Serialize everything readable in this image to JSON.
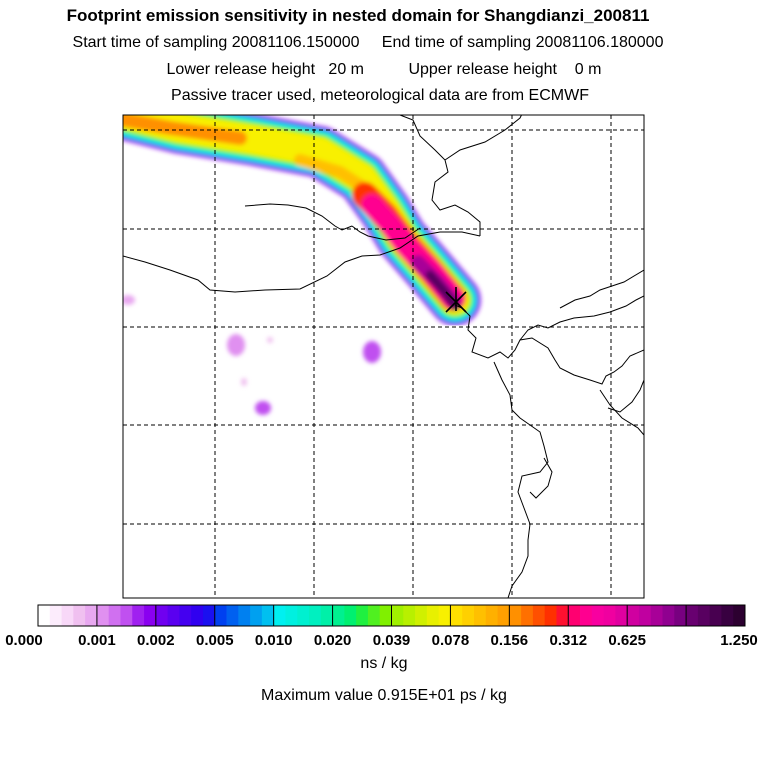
{
  "header": {
    "title": "Footprint emission sensitivity in nested domain for Shangdianzi_200811",
    "start_label": "Start time of sampling",
    "start_value": "20081106.150000",
    "end_label": "End time of sampling",
    "end_value": "20081106.180000",
    "lower_label": "Lower release height",
    "lower_value": "20 m",
    "upper_label": "Upper release height",
    "upper_value": "0 m",
    "tracer_note": "Passive tracer used, meteorological data are from ECMWF"
  },
  "map": {
    "release_site_marker": "x-marker-icon",
    "gridlines": "dashed"
  },
  "colorbar": {
    "tick_labels": [
      "0.000",
      "0.001",
      "0.002",
      "0.005",
      "0.010",
      "0.020",
      "0.039",
      "0.078",
      "0.156",
      "0.312",
      "0.625",
      "1.250"
    ],
    "segments": [
      [
        "#ffffff",
        "#fcecfc",
        "#f8d8f8",
        "#f0c0f0",
        "#e8a8f0"
      ],
      [
        "#e090f0",
        "#d070f0",
        "#c050f0",
        "#a020f0",
        "#8a00f0"
      ],
      [
        "#7000f0",
        "#5a00f0",
        "#4400f0",
        "#3000f0",
        "#1a10f0"
      ],
      [
        "#0040f0",
        "#0060f0",
        "#0080f0",
        "#00a0f0",
        "#00c0f0"
      ],
      [
        "#00f0f0",
        "#00f0e0",
        "#00f0d0",
        "#00f0c0",
        "#00f0a8"
      ],
      [
        "#00f090",
        "#00f070",
        "#20f040",
        "#50f020",
        "#80f000"
      ],
      [
        "#a0f000",
        "#b8f000",
        "#d0f000",
        "#e8f000",
        "#f8f000"
      ],
      [
        "#ffe000",
        "#ffd000",
        "#ffc000",
        "#ffb000",
        "#ffa000"
      ],
      [
        "#ff9000",
        "#ff7000",
        "#ff5000",
        "#ff3000",
        "#ff1030"
      ],
      [
        "#ff0070",
        "#ff0090",
        "#f800a0",
        "#f000a0",
        "#e000a0"
      ],
      [
        "#d000a0",
        "#c000a0",
        "#a80098",
        "#900090",
        "#780080"
      ],
      [
        "#680070",
        "#580060",
        "#480050",
        "#380040",
        "#2c0030"
      ]
    ],
    "unit": "ns / kg"
  },
  "max_value": {
    "label": "Maximum value",
    "value": "0.915E+01 ps / kg"
  }
}
